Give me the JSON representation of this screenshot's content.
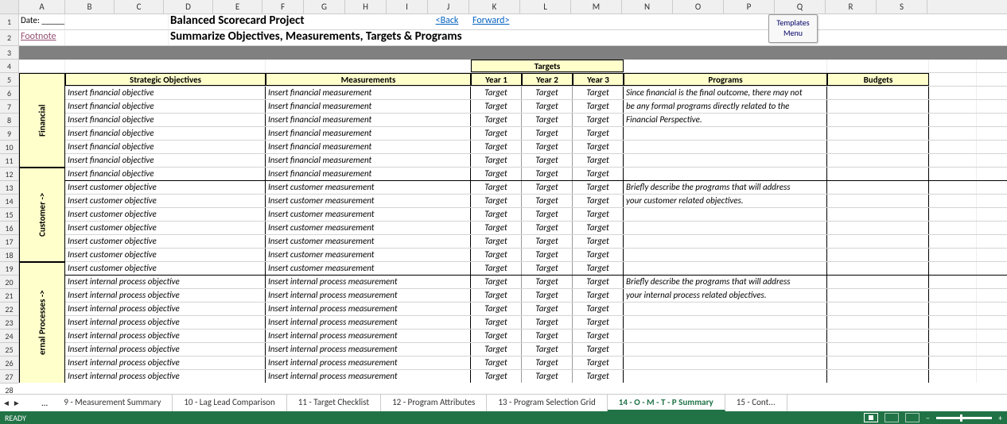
{
  "columns": [
    {
      "label": "A",
      "w": 58
    },
    {
      "label": "B",
      "w": 62
    },
    {
      "label": "C",
      "w": 62
    },
    {
      "label": "D",
      "w": 62
    },
    {
      "label": "E",
      "w": 62
    },
    {
      "label": "F",
      "w": 52
    },
    {
      "label": "G",
      "w": 52
    },
    {
      "label": "H",
      "w": 52
    },
    {
      "label": "I",
      "w": 52
    },
    {
      "label": "J",
      "w": 52
    },
    {
      "label": "K",
      "w": 64
    },
    {
      "label": "L",
      "w": 64
    },
    {
      "label": "M",
      "w": 64
    },
    {
      "label": "N",
      "w": 64
    },
    {
      "label": "O",
      "w": 64
    },
    {
      "label": "P",
      "w": 64
    },
    {
      "label": "Q",
      "w": 64
    },
    {
      "label": "R",
      "w": 64
    },
    {
      "label": "S",
      "w": 64
    }
  ],
  "row_numbers": [
    1,
    2,
    3,
    4,
    5,
    6,
    7,
    8,
    9,
    10,
    11,
    12,
    13,
    14,
    15,
    16,
    17,
    18,
    19,
    20,
    21,
    22,
    23,
    24,
    25,
    26,
    27,
    28
  ],
  "header": {
    "date_label": "Date: __________",
    "title1": "Balanced Scorecard Project",
    "back": "<Back",
    "forward": "Forward>",
    "footnote": "Footnote",
    "title2": "Summarize Objectives, Measurements, Targets & Programs",
    "templates_btn": "Templates Menu"
  },
  "table_headers": {
    "objectives": "Strategic Objectives",
    "measurements": "Measurements",
    "targets": "Targets",
    "year1": "Year 1",
    "year2": "Year 2",
    "year3": "Year 3",
    "programs": "Programs",
    "budgets": "Budgets"
  },
  "perspectives": [
    {
      "name": "Financial",
      "rows": 7,
      "obj": "Insert financial objective",
      "meas": "Insert financial measurement",
      "tgt": "Target",
      "prog": [
        "Since financial is the final outcome, there may not",
        "be any formal programs directly related to the",
        "Financial Perspective."
      ]
    },
    {
      "name": "Customer ->",
      "rows": 7,
      "obj": "Insert customer objective",
      "meas": "Insert customer measurement",
      "tgt": "Target",
      "prog": [
        "Briefly describe the programs that will address",
        "your customer related objectives."
      ]
    },
    {
      "name": "ernal Processes ->",
      "rows": 9,
      "obj": "Insert internal process objective",
      "meas": "Insert internal process measurement",
      "tgt": "Target",
      "prog": [
        "Briefly describe the programs that will address",
        "your internal process related objectives."
      ]
    }
  ],
  "tabs": {
    "list": [
      "9 - Measurement Summary",
      "10 - Lag Lead Comparison",
      "11 - Target Checklist",
      "12 - Program Attributes",
      "13 - Program Selection Grid",
      "14 - O - M - T - P Summary",
      "15 - Cont..."
    ],
    "active": 5
  },
  "status": "READY",
  "colors": {
    "header_bg": "#ffffcc",
    "excel_green": "#217346",
    "link_blue": "#0563c1",
    "link_purple": "#954f72"
  }
}
